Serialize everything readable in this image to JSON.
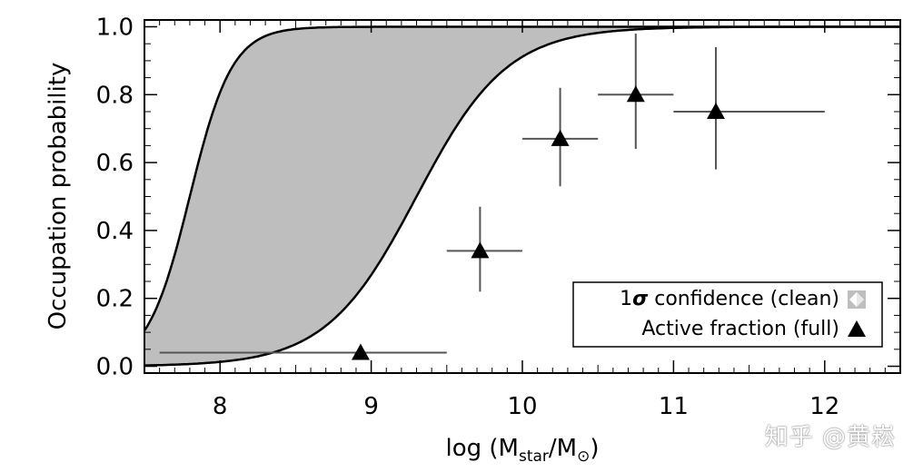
{
  "chart_data": {
    "type": "scatter",
    "xlabel": "log (M",
    "xlabel_sub": "star",
    "xlabel_mid": "/M",
    "xlabel_sym": "⊙",
    "xlabel_end": ")",
    "ylabel": "Occupation probability",
    "xlim": [
      7.5,
      12.5
    ],
    "ylim": [
      -0.02,
      1.02
    ],
    "x_ticks": [
      {
        "value": 8,
        "label": "8"
      },
      {
        "value": 9,
        "label": "9"
      },
      {
        "value": 10,
        "label": "10"
      },
      {
        "value": 11,
        "label": "11"
      },
      {
        "value": 12,
        "label": "12"
      }
    ],
    "y_ticks": [
      {
        "value": 0.0,
        "label": "0.0"
      },
      {
        "value": 0.2,
        "label": "0.2"
      },
      {
        "value": 0.4,
        "label": "0.4"
      },
      {
        "value": 0.6,
        "label": "0.6"
      },
      {
        "value": 0.8,
        "label": "0.8"
      },
      {
        "value": 1.0,
        "label": "1.0"
      }
    ],
    "band": {
      "upper_curve": {
        "midpoint": 7.8,
        "width": 0.14
      },
      "lower_curve": {
        "midpoint": 9.3,
        "width": 0.3
      }
    },
    "points": [
      {
        "x": 8.93,
        "y": 0.04,
        "xerr": [
          7.6,
          9.5
        ],
        "yerr": [
          0.04,
          0.04
        ]
      },
      {
        "x": 9.72,
        "y": 0.34,
        "xerr": [
          9.5,
          10.0
        ],
        "yerr": [
          0.22,
          0.47
        ]
      },
      {
        "x": 10.25,
        "y": 0.67,
        "xerr": [
          10.0,
          10.5
        ],
        "yerr": [
          0.53,
          0.82
        ]
      },
      {
        "x": 10.75,
        "y": 0.8,
        "xerr": [
          10.5,
          11.0
        ],
        "yerr": [
          0.64,
          0.98
        ]
      },
      {
        "x": 11.28,
        "y": 0.75,
        "xerr": [
          11.0,
          12.0
        ],
        "yerr": [
          0.58,
          0.94
        ]
      }
    ],
    "legend": {
      "placement": "lower-right",
      "entries": [
        {
          "label_prefix": "1",
          "label_sigma": "σ",
          "label_rest": " confidence (clean)",
          "marker": "gray-diamond-box"
        },
        {
          "label_prefix": "",
          "label_sigma": "",
          "label_rest": "Active fraction (full)",
          "marker": "filled-triangle"
        }
      ]
    },
    "colors": {
      "band_fill": "#bebebe",
      "curve": "#000000",
      "errorbar": "#555555",
      "marker": "#000000"
    }
  },
  "watermark": "知乎 @黄崧"
}
